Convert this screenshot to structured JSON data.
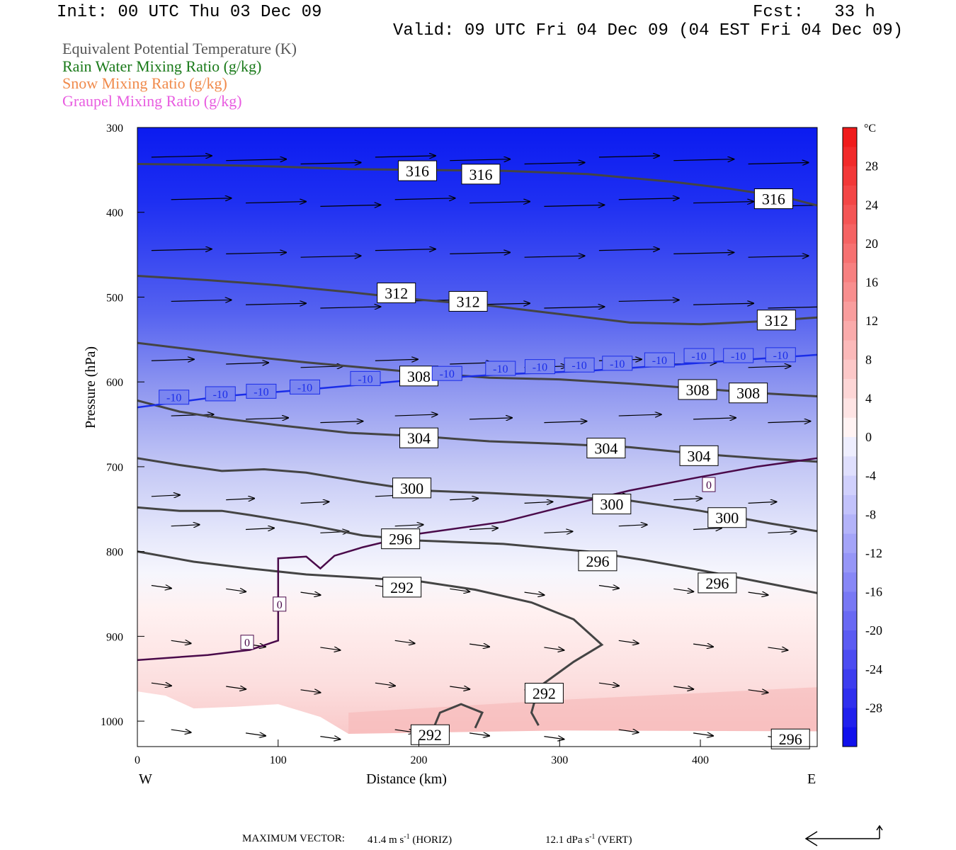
{
  "header": {
    "init": "Init: 00 UTC Thu 03 Dec 09",
    "fcst": "Fcst:   33 h",
    "valid": "Valid: 09 UTC Fri 04 Dec 09 (04 EST Fri 04 Dec 09)"
  },
  "legend": [
    {
      "label": "Equivalent Potential Temperature (K)",
      "color": "#555555"
    },
    {
      "label": "Rain Water Mixing Ratio (g/kg)",
      "color": "#1a7a1a"
    },
    {
      "label": "Snow Mixing Ratio (g/kg)",
      "color": "#f08a4b"
    },
    {
      "label": "Graupel Mixing Ratio (g/kg)",
      "color": "#e85ce0"
    }
  ],
  "footer": {
    "max_vector_label": "MAXIMUM VECTOR:",
    "horiz": "41.4 m s",
    "horiz_unit": "(HORIZ)",
    "vert": "12.1 dPa s",
    "vert_unit": "(VERT)",
    "exp": "-1"
  },
  "chart_data": {
    "type": "contour",
    "xlabel": "Distance (km)",
    "ylabel": "Pressure (hPa)",
    "xlim": [
      0,
      483
    ],
    "ylim": [
      1030,
      300
    ],
    "x_ticks": [
      0,
      100,
      200,
      300,
      400
    ],
    "y_ticks": [
      300,
      400,
      500,
      600,
      700,
      800,
      900,
      1000
    ],
    "x_end_labels": {
      "left": "W",
      "right": "E"
    },
    "colorbar": {
      "unit": "°C",
      "ticks": [
        28,
        24,
        20,
        16,
        12,
        8,
        4,
        0,
        -4,
        -8,
        -12,
        -16,
        -20,
        -24,
        -28
      ],
      "range": [
        -32,
        32
      ]
    },
    "theta_e_contours": [
      {
        "level": 316,
        "points": [
          [
            0,
            343
          ],
          [
            50,
            344
          ],
          [
            100,
            346
          ],
          [
            150,
            349
          ],
          [
            200,
            350
          ],
          [
            260,
            351
          ],
          [
            320,
            355
          ],
          [
            380,
            364
          ],
          [
            420,
            372
          ],
          [
            460,
            382
          ],
          [
            483,
            392
          ]
        ]
      },
      {
        "level": 312,
        "points": [
          [
            0,
            475
          ],
          [
            50,
            480
          ],
          [
            100,
            486
          ],
          [
            150,
            494
          ],
          [
            200,
            503
          ],
          [
            250,
            510
          ],
          [
            300,
            520
          ],
          [
            350,
            530
          ],
          [
            400,
            532
          ],
          [
            450,
            528
          ],
          [
            483,
            524
          ]
        ]
      },
      {
        "level": 308,
        "points": [
          [
            0,
            554
          ],
          [
            40,
            562
          ],
          [
            80,
            570
          ],
          [
            120,
            577
          ],
          [
            160,
            583
          ],
          [
            200,
            589
          ],
          [
            250,
            595
          ],
          [
            300,
            597
          ],
          [
            350,
            602
          ],
          [
            400,
            608
          ],
          [
            450,
            614
          ],
          [
            483,
            617
          ]
        ]
      },
      {
        "level": 304,
        "points": [
          [
            0,
            622
          ],
          [
            30,
            635
          ],
          [
            60,
            643
          ],
          [
            100,
            651
          ],
          [
            150,
            660
          ],
          [
            200,
            664
          ],
          [
            250,
            670
          ],
          [
            300,
            673
          ],
          [
            350,
            677
          ],
          [
            400,
            685
          ],
          [
            450,
            691
          ],
          [
            483,
            694
          ]
        ]
      },
      {
        "level": 300,
        "points": [
          [
            0,
            690
          ],
          [
            30,
            698
          ],
          [
            60,
            705
          ],
          [
            90,
            703
          ],
          [
            120,
            707
          ],
          [
            160,
            718
          ],
          [
            200,
            728
          ],
          [
            250,
            731
          ],
          [
            300,
            735
          ],
          [
            350,
            740
          ],
          [
            400,
            752
          ],
          [
            450,
            767
          ],
          [
            483,
            776
          ]
        ]
      },
      {
        "level": 296,
        "points": [
          [
            0,
            748
          ],
          [
            30,
            752
          ],
          [
            60,
            752
          ],
          [
            80,
            757
          ],
          [
            120,
            768
          ],
          [
            160,
            781
          ],
          [
            200,
            787
          ],
          [
            260,
            791
          ],
          [
            320,
            800
          ],
          [
            360,
            810
          ],
          [
            400,
            822
          ],
          [
            440,
            835
          ],
          [
            483,
            849
          ]
        ]
      },
      {
        "level": 292,
        "points": [
          [
            0,
            800
          ],
          [
            40,
            812
          ],
          [
            80,
            820
          ],
          [
            120,
            827
          ],
          [
            160,
            831
          ],
          [
            200,
            835
          ],
          [
            240,
            845
          ],
          [
            280,
            860
          ],
          [
            310,
            880
          ],
          [
            330,
            910
          ],
          [
            310,
            930
          ],
          [
            285,
            960
          ],
          [
            280,
            990
          ],
          [
            285,
            1005
          ]
        ]
      },
      {
        "level": 292,
        "points": [
          [
            210,
            1010
          ],
          [
            215,
            990
          ],
          [
            230,
            980
          ],
          [
            245,
            990
          ],
          [
            240,
            1008
          ]
        ]
      }
    ],
    "temperature_contours": [
      {
        "level": -10,
        "points": [
          [
            0,
            630
          ],
          [
            60,
            617
          ],
          [
            120,
            609
          ],
          [
            200,
            597
          ],
          [
            260,
            591
          ],
          [
            320,
            587
          ],
          [
            380,
            580
          ],
          [
            430,
            574
          ],
          [
            483,
            568
          ]
        ]
      },
      {
        "level": 0,
        "points": [
          [
            0,
            928
          ],
          [
            50,
            922
          ],
          [
            80,
            916
          ],
          [
            100,
            905
          ],
          [
            100,
            840
          ],
          [
            100,
            808
          ],
          [
            120,
            806
          ],
          [
            130,
            820
          ],
          [
            140,
            805
          ],
          [
            160,
            795
          ],
          [
            200,
            779
          ],
          [
            260,
            765
          ],
          [
            310,
            744
          ],
          [
            350,
            728
          ],
          [
            400,
            712
          ],
          [
            440,
            700
          ],
          [
            483,
            690
          ]
        ]
      }
    ],
    "contour_labels": [
      {
        "text": "316",
        "x": 199,
        "p": 351
      },
      {
        "text": "316",
        "x": 244,
        "p": 355
      },
      {
        "text": "316",
        "x": 452,
        "p": 384
      },
      {
        "text": "312",
        "x": 184,
        "p": 495
      },
      {
        "text": "312",
        "x": 235,
        "p": 505
      },
      {
        "text": "312",
        "x": 454,
        "p": 527
      },
      {
        "text": "308",
        "x": 200,
        "p": 593
      },
      {
        "text": "308",
        "x": 398,
        "p": 609
      },
      {
        "text": "308",
        "x": 434,
        "p": 613
      },
      {
        "text": "304",
        "x": 200,
        "p": 666
      },
      {
        "text": "304",
        "x": 333,
        "p": 678
      },
      {
        "text": "304",
        "x": 399,
        "p": 687
      },
      {
        "text": "300",
        "x": 195,
        "p": 725
      },
      {
        "text": "300",
        "x": 337,
        "p": 744
      },
      {
        "text": "300",
        "x": 419,
        "p": 760
      },
      {
        "text": "296",
        "x": 187,
        "p": 785
      },
      {
        "text": "296",
        "x": 327,
        "p": 811
      },
      {
        "text": "296",
        "x": 412,
        "p": 837
      },
      {
        "text": "292",
        "x": 188,
        "p": 842
      },
      {
        "text": "292",
        "x": 289,
        "p": 967
      },
      {
        "text": "292",
        "x": 208,
        "p": 1016
      },
      {
        "text": "296",
        "x": 464,
        "p": 1021
      }
    ],
    "temp_labels": [
      {
        "text": "-10",
        "x": 26,
        "p": 618
      },
      {
        "text": "-10",
        "x": 59,
        "p": 614
      },
      {
        "text": "-10",
        "x": 88,
        "p": 611
      },
      {
        "text": "-10",
        "x": 119,
        "p": 606
      },
      {
        "text": "-10",
        "x": 162,
        "p": 596
      },
      {
        "text": "-10",
        "x": 220,
        "p": 590
      },
      {
        "text": "-10",
        "x": 258,
        "p": 584
      },
      {
        "text": "-10",
        "x": 286,
        "p": 582
      },
      {
        "text": "-10",
        "x": 314,
        "p": 580
      },
      {
        "text": "-10",
        "x": 341,
        "p": 578
      },
      {
        "text": "-10",
        "x": 371,
        "p": 574
      },
      {
        "text": "-10",
        "x": 399,
        "p": 569
      },
      {
        "text": "-10",
        "x": 427,
        "p": 569
      },
      {
        "text": "-10",
        "x": 457,
        "p": 568
      },
      {
        "text": "0",
        "x": 406,
        "p": 721
      },
      {
        "text": "0",
        "x": 101,
        "p": 862
      },
      {
        "text": "0",
        "x": 78,
        "p": 907
      }
    ],
    "max_vector": {
      "horiz": 41.4,
      "vert": 12.1
    }
  }
}
